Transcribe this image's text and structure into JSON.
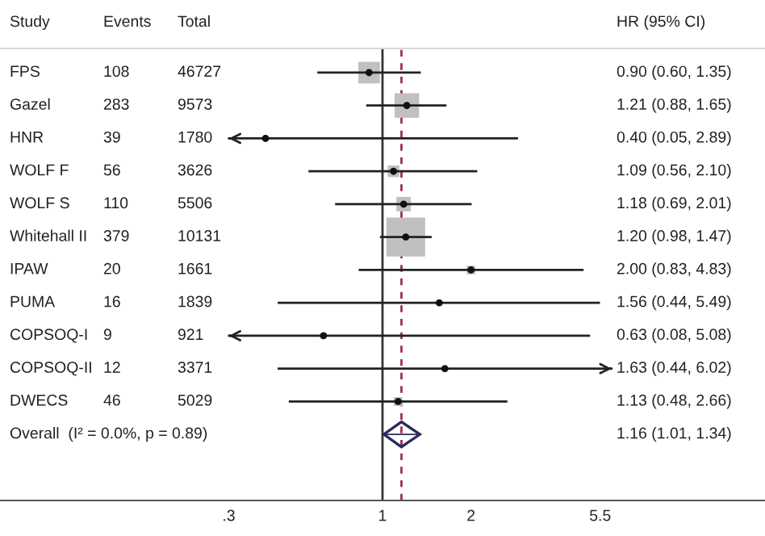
{
  "chart_data": {
    "type": "scatter",
    "orientation": "horizontal",
    "log": "x",
    "categories": [
      "FPS",
      "Gazel",
      "HNR",
      "WOLF F",
      "WOLF S",
      "Whitehall II",
      "IPAW",
      "PUMA",
      "COPSOQ-I",
      "COPSOQ-II",
      "DWECS",
      "Overall  (I² = 0.0%, p = 0.89)"
    ],
    "series": [
      {
        "type": "bubble",
        "marker": "square",
        "color": "#c0c0c0",
        "values": [
          0.9,
          1.21,
          0.4,
          1.09,
          1.18,
          1.2,
          2.0,
          1.56,
          0.63,
          1.63,
          1.13,
          null
        ],
        "errors": [
          [
            0.6,
            1.35
          ],
          [
            0.88,
            1.65
          ],
          [
            0.05,
            2.89
          ],
          [
            0.56,
            2.1
          ],
          [
            0.69,
            2.01
          ],
          [
            0.98,
            1.47
          ],
          [
            0.83,
            4.83
          ],
          [
            0.44,
            5.49
          ],
          [
            0.08,
            5.08
          ],
          [
            0.44,
            6.02
          ],
          [
            0.48,
            2.66
          ],
          null
        ],
        "sizes": [
          0.31,
          0.4,
          0.01,
          0.09,
          0.14,
          1,
          0.05,
          0.01,
          0.01,
          0.01,
          0.05,
          null
        ]
      },
      {
        "marker": "diamond",
        "color": "#2b2b5e",
        "values": [
          null,
          null,
          null,
          null,
          null,
          null,
          null,
          null,
          null,
          null,
          null,
          1.16
        ],
        "errors": [
          null,
          null,
          null,
          null,
          null,
          null,
          null,
          null,
          null,
          null,
          null,
          [
            1.01,
            1.34
          ]
        ]
      }
    ],
    "xlim": [
      0.05,
      20
    ],
    "xticks": [
      {
        "value": 0.3,
        "label": ".3"
      },
      1,
      2,
      {
        "value": 5.5,
        "label": "5.5"
      }
    ],
    "ref_lines": [
      {
        "axis": "x",
        "value": 1,
        "color": "#333333",
        "line_style": "solid"
      },
      {
        "axis": "x",
        "value": 1.16,
        "color": "#a0304a",
        "line_style": "dashed"
      }
    ],
    "annotations": [
      "Study",
      "Events",
      "Total",
      "HR (95% CI)",
      "108",
      "46727",
      "0.90 (0.60, 1.35)",
      "283",
      "9573",
      "1.21 (0.88, 1.65)",
      "39",
      "1780",
      "0.40 (0.05, 2.89)",
      "56",
      "3626",
      "1.09 (0.56, 2.10)",
      "110",
      "5506",
      "1.18 (0.69, 2.01)",
      "379",
      "10131",
      "1.20 (0.98, 1.47)",
      "20",
      "1661",
      "2.00 (0.83, 4.83)",
      "16",
      "1839",
      "1.56 (0.44, 5.49)",
      "9",
      "921",
      "0.63 (0.08, 5.08)",
      "12",
      "3371",
      "1.63 (0.44, 6.02)",
      "46",
      "5029",
      "1.13 (0.48, 2.66)",
      "1.16 (1.01, 1.34)"
    ],
    "grid": false,
    "legend": false
  }
}
